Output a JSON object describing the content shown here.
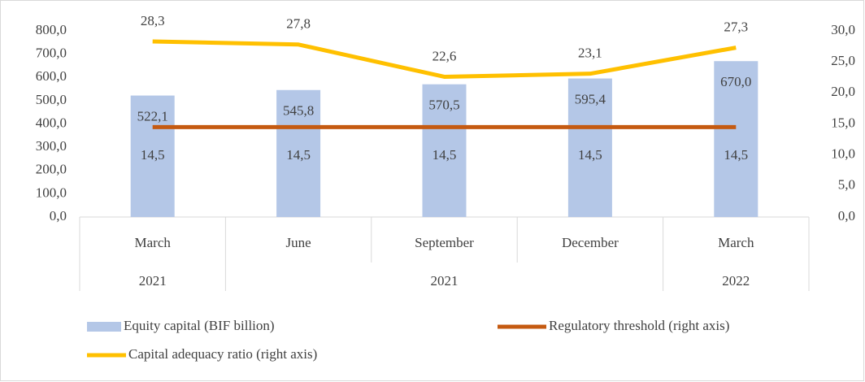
{
  "chart_data": {
    "type": "bar-line",
    "categories": [
      "March",
      "June",
      "September",
      "December",
      "March"
    ],
    "category_groups": [
      {
        "label": "2021",
        "count": 1
      },
      {
        "label": "2021",
        "count": 3
      },
      {
        "label": "2022",
        "count": 1
      }
    ],
    "series": [
      {
        "name": "Equity capital (BIF billion)",
        "type": "bar",
        "color": "#b4c7e7",
        "values": [
          522.1,
          545.8,
          570.5,
          595.4,
          670.0
        ],
        "value_labels": [
          "522,1",
          "545,8",
          "570,5",
          "595,4",
          "670,0"
        ]
      },
      {
        "name": "Regulatory threshold (right axis)",
        "type": "line",
        "axis": "y2",
        "color": "#c55a11",
        "values": [
          14.5,
          14.5,
          14.5,
          14.5,
          14.5
        ],
        "value_labels": [
          "14,5",
          "14,5",
          "14,5",
          "14,5",
          "14,5"
        ]
      },
      {
        "name": "Capital adequacy ratio (right axis)",
        "type": "line",
        "axis": "y2",
        "color": "#ffc000",
        "values": [
          28.3,
          27.8,
          22.6,
          23.1,
          27.3
        ],
        "value_labels": [
          "28,3",
          "27,8",
          "22,6",
          "23,1",
          "27,3"
        ]
      }
    ],
    "ylim": [
      0,
      800
    ],
    "yticks": [
      {
        "value": 0,
        "label": "0,0"
      },
      {
        "value": 100,
        "label": "100,0"
      },
      {
        "value": 200,
        "label": "200,0"
      },
      {
        "value": 300,
        "label": "300,0"
      },
      {
        "value": 400,
        "label": "400,0"
      },
      {
        "value": 500,
        "label": "500,0"
      },
      {
        "value": 600,
        "label": "600,0"
      },
      {
        "value": 700,
        "label": "700,0"
      },
      {
        "value": 800,
        "label": "800,0"
      }
    ],
    "y2lim": [
      0,
      30
    ],
    "y2ticks": [
      {
        "value": 0,
        "label": "0,0"
      },
      {
        "value": 5,
        "label": "5,0"
      },
      {
        "value": 10,
        "label": "10,0"
      },
      {
        "value": 15,
        "label": "15,0"
      },
      {
        "value": 20,
        "label": "20,0"
      },
      {
        "value": 25,
        "label": "25,0"
      },
      {
        "value": 30,
        "label": "30,0"
      }
    ],
    "legend": "bottom"
  }
}
